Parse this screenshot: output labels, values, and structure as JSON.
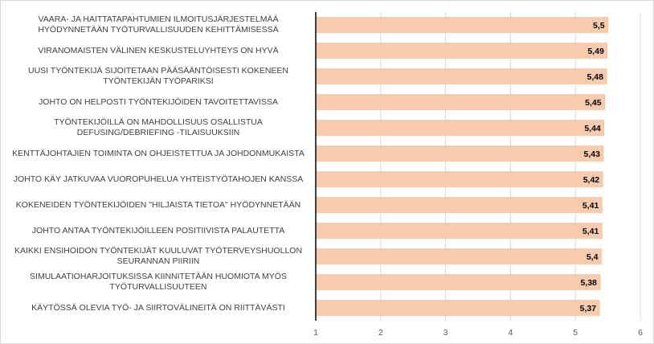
{
  "chart_data": {
    "type": "bar",
    "orientation": "horizontal",
    "categories": [
      "VAARA- JA HAITTATAPAHTUMIEN ILMOITUSJÄRJESTELMÄÄ HYÖDYNNETÄÄN TYÖTURVALLISUUDEN KEHITTÄMISESSÄ",
      "VIRANOMAISTEN VÄLINEN KESKUSTELUYHTEYS ON HYVÄ",
      "UUSI TYÖNTEKIJÄ SIJOITETAAN PÄÄSÄÄNTÖISESTI KOKENEEN TYÖNTEKIJÄN TYÖPARIKSI",
      "JOHTO ON HELPOSTI TYÖNTEKIJÖIDEN TAVOITETTAVISSA",
      "TYÖNTEKIJÖILLÄ ON MAHDOLLISUUS OSALLISTUA DEFUSING/DEBRIEFING -TILAISUUKSIIN",
      "KENTTÄJOHTAJIEN TOIMINTA ON OHJEISTETTUA JA JOHDONMUKAISTA",
      "JOHTO KÄY JATKUVAA VUOROPUHELUA YHTEISTYÖTAHOJEN KANSSA",
      "KOKENEIDEN TYÖNTEKIJÖIDEN \"HILJAISTA TIETOA\" HYÖDYNNETÄÄN",
      "JOHTO ANTAA TYÖNTEKIJÖILLEEN POSITIIVISTA PALAUTETTA",
      "KAIKKI ENSIHOIDON TYÖNTEKIJÄT KUULUVAT TYÖTERVEYSHUOLLON SEURANNAN PIIRIIN",
      "SIMULAATIOHARJOITUKSISSA KIINNITETÄÄN HUOMIOTA MYÖS TYÖTURVALLISUUTEEN",
      "KÄYTÖSSÄ OLEVIA TYÖ- JA SIIRTOVÄLINEITÄ ON RIITTÄVÄSTI"
    ],
    "values": [
      5.5,
      5.49,
      5.48,
      5.45,
      5.44,
      5.43,
      5.42,
      5.41,
      5.41,
      5.4,
      5.38,
      5.37
    ],
    "value_labels": [
      "5,5",
      "5,49",
      "5,48",
      "5,45",
      "5,44",
      "5,43",
      "5,42",
      "5,41",
      "5,41",
      "5,4",
      "5,38",
      "5,37"
    ],
    "x_ticks": [
      "1",
      "2",
      "3",
      "4",
      "5",
      "6"
    ],
    "xlim": [
      1,
      6
    ],
    "grid": true,
    "legend": "none",
    "colors": {
      "bar_fill": "#f8cbad",
      "bar_stroke": "#f4b183",
      "axis": "#000000",
      "grid": "#d9d9d9"
    }
  }
}
